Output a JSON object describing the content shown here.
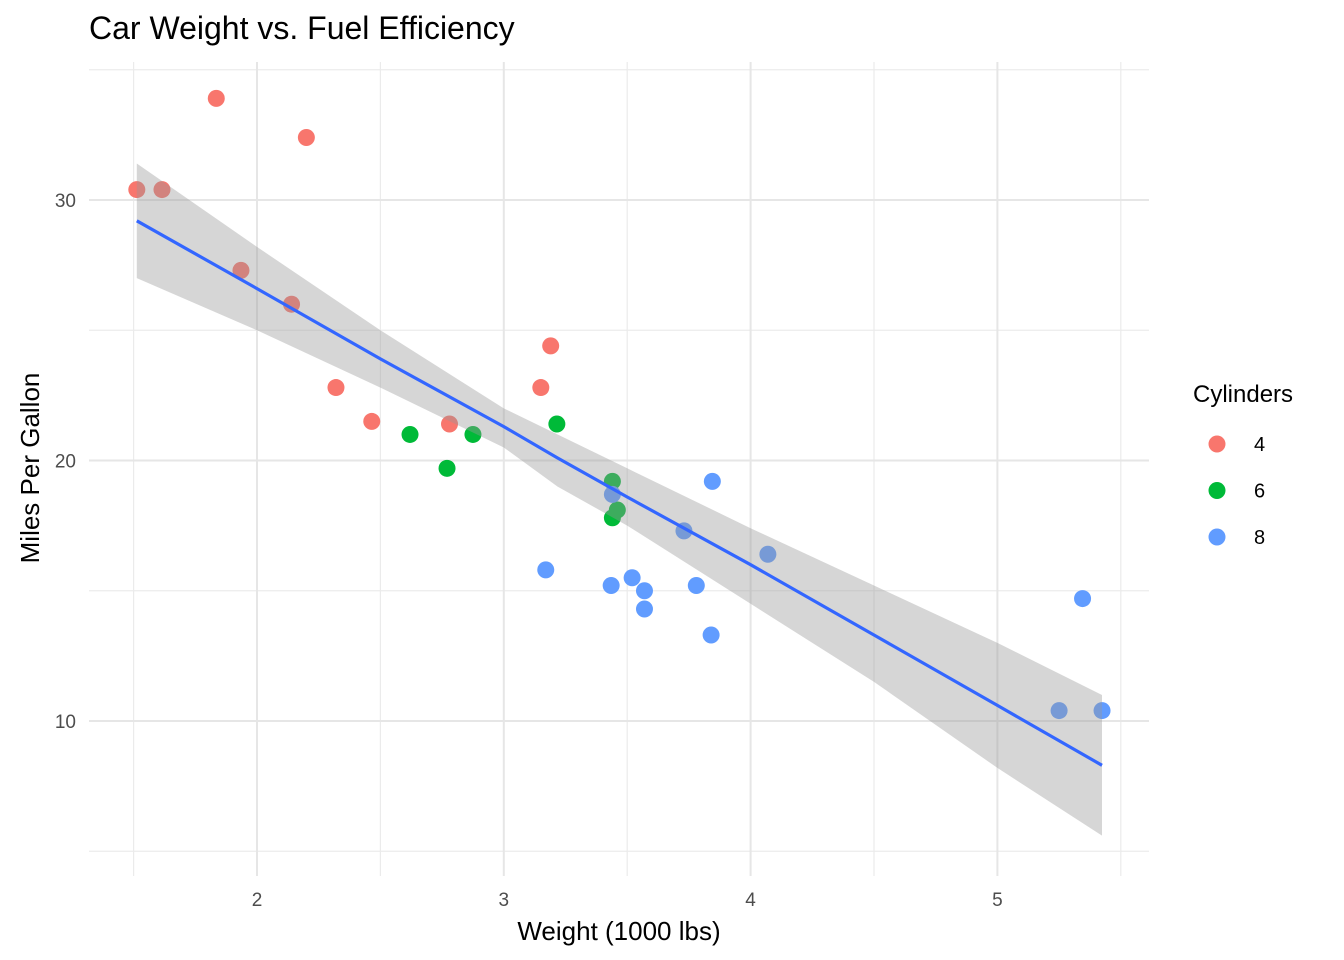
{
  "chart_data": {
    "type": "scatter",
    "title": "Car Weight vs. Fuel Efficiency",
    "xlabel": "Weight (1000 lbs)",
    "ylabel": "Miles Per Gallon",
    "xlim": [
      1.35,
      5.6
    ],
    "ylim": [
      5,
      35
    ],
    "x_ticks": [
      2,
      3,
      4,
      5
    ],
    "y_ticks": [
      10,
      20,
      30
    ],
    "grid": true,
    "legend": {
      "title": "Cylinders",
      "position": "right",
      "entries": [
        {
          "label": "4",
          "color": "#F8766D"
        },
        {
          "label": "6",
          "color": "#00BA38"
        },
        {
          "label": "8",
          "color": "#619CFF"
        }
      ]
    },
    "series": [
      {
        "name": "4",
        "color": "#F8766D",
        "points": [
          [
            1.513,
            30.4
          ],
          [
            1.615,
            30.4
          ],
          [
            1.835,
            33.9
          ],
          [
            2.2,
            32.4
          ],
          [
            1.935,
            27.3
          ],
          [
            2.14,
            26.0
          ],
          [
            2.32,
            22.8
          ],
          [
            2.465,
            21.5
          ],
          [
            2.78,
            21.4
          ],
          [
            3.15,
            22.8
          ],
          [
            3.19,
            24.4
          ]
        ]
      },
      {
        "name": "6",
        "color": "#00BA38",
        "points": [
          [
            2.62,
            21.0
          ],
          [
            2.875,
            21.0
          ],
          [
            2.77,
            19.7
          ],
          [
            3.215,
            21.4
          ],
          [
            3.44,
            19.2
          ],
          [
            3.44,
            17.8
          ],
          [
            3.46,
            18.1
          ]
        ]
      },
      {
        "name": "8",
        "color": "#619CFF",
        "points": [
          [
            3.44,
            18.7
          ],
          [
            3.57,
            14.3
          ],
          [
            4.07,
            16.4
          ],
          [
            3.73,
            17.3
          ],
          [
            3.78,
            15.2
          ],
          [
            5.25,
            10.4
          ],
          [
            5.424,
            10.4
          ],
          [
            5.345,
            14.7
          ],
          [
            3.52,
            15.5
          ],
          [
            3.435,
            15.2
          ],
          [
            3.84,
            13.3
          ],
          [
            3.845,
            19.2
          ],
          [
            3.17,
            15.8
          ],
          [
            3.57,
            15.0
          ]
        ]
      }
    ],
    "regression": {
      "method": "lm",
      "color": "#3366FF",
      "ribbon_color": "#999999",
      "x": [
        1.513,
        2.0,
        2.5,
        3.0,
        3.217,
        3.5,
        4.0,
        4.5,
        5.0,
        5.424
      ],
      "fit": [
        29.2,
        26.6,
        23.9,
        21.3,
        20.1,
        18.6,
        16.0,
        13.3,
        10.6,
        8.3
      ],
      "lower": [
        27.0,
        25.0,
        22.8,
        20.5,
        19.0,
        17.5,
        14.5,
        11.5,
        8.2,
        5.6
      ],
      "upper": [
        31.4,
        28.2,
        25.0,
        22.0,
        21.0,
        19.7,
        17.4,
        15.2,
        13.0,
        11.0
      ]
    }
  }
}
